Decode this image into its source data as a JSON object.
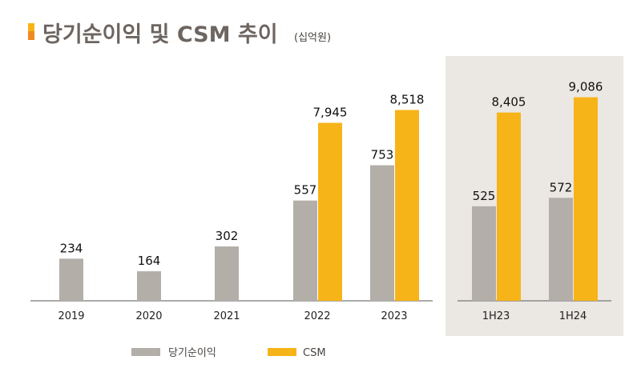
{
  "chart_data": {
    "type": "bar",
    "title": "당기순이익 및 CSM 추이",
    "unit": "(십억원)",
    "categories": [
      "2019",
      "2020",
      "2021",
      "2022",
      "2023",
      "1H23",
      "1H24"
    ],
    "highlighted_categories": [
      "1H23",
      "1H24"
    ],
    "series": [
      {
        "name": "당기순이익",
        "color": "#b3aea8",
        "values": [
          234,
          164,
          302,
          557,
          753,
          525,
          572
        ]
      },
      {
        "name": "CSM",
        "color": "#f7b418",
        "values": [
          null,
          null,
          null,
          7945,
          8518,
          8405,
          9086
        ]
      }
    ],
    "value_labels": {
      "당기순이익": [
        "234",
        "164",
        "302",
        "557",
        "753",
        "525",
        "572"
      ],
      "CSM": [
        "",
        "",
        "",
        "7,945",
        "8,518",
        "8,405",
        "9,086"
      ]
    },
    "legend": "bottom",
    "grid": false,
    "colors": {
      "title_bar_top": "#f7b418",
      "title_bar_bottom": "#ef8a22",
      "title": "#6d6560",
      "panel": "#ebe7e3",
      "axis": "#777"
    }
  }
}
